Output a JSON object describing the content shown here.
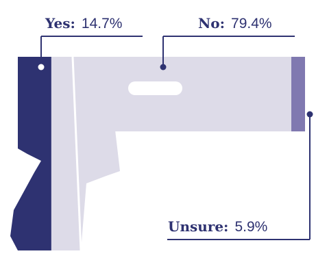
{
  "chart_data": {
    "type": "pictorial-bar",
    "shape": "pistol-icon",
    "orientation": "horizontal",
    "series": [
      {
        "name": "Yes",
        "label": "Yes:",
        "value": 14.7,
        "value_label": "14.7%",
        "color": "#2e3271"
      },
      {
        "name": "No",
        "label": "No:",
        "value": 79.4,
        "value_label": "79.4%",
        "color": "#dddbe8"
      },
      {
        "name": "Unsure",
        "label": "Unsure:",
        "value": 5.9,
        "value_label": "5.9%",
        "color": "#8079b0"
      }
    ],
    "title": "",
    "xlabel": "",
    "ylabel": ""
  },
  "colors": {
    "leader_line": "#2e3271",
    "label_name": "#2e3271",
    "label_value": "#2e3271",
    "background": "#ffffff",
    "cutout": "#ffffff"
  }
}
